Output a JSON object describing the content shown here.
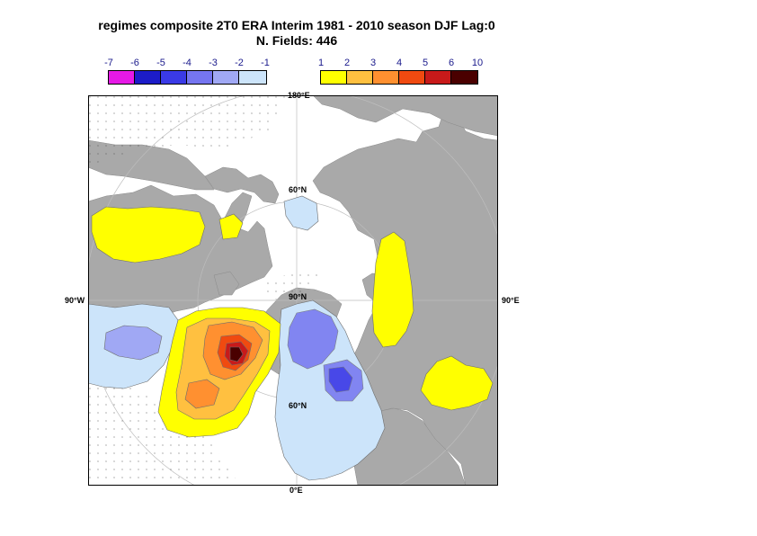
{
  "title": {
    "line1": "regimes composite 2T0 ERA Interim 1981 - 2010 season DJF Lag:0",
    "line2": "N. Fields: 446"
  },
  "colorbar_negative": {
    "labels": [
      "-7",
      "-6",
      "-5",
      "-4",
      "-3",
      "-2",
      "-1"
    ],
    "colors": [
      "#e619e6",
      "#1c1cc8",
      "#3a3ae6",
      "#7575f0",
      "#a0a8f4",
      "#cce4fa"
    ]
  },
  "colorbar_positive": {
    "labels": [
      "1",
      "2",
      "3",
      "4",
      "5",
      "6",
      "10"
    ],
    "colors": [
      "#ffff00",
      "#ffc040",
      "#ff9030",
      "#f04a10",
      "#c81a1a",
      "#4a0000"
    ]
  },
  "map": {
    "projection": "north polar stereographic",
    "labels": {
      "top": "180°E",
      "bottom": "0°E",
      "left": "90°W",
      "right": "90°E",
      "lat60_top": "60°N",
      "lat60_bottom": "60°N",
      "pole": "90°N"
    },
    "land_color": "#a9a9a9",
    "ocean_color": "#ffffff"
  }
}
